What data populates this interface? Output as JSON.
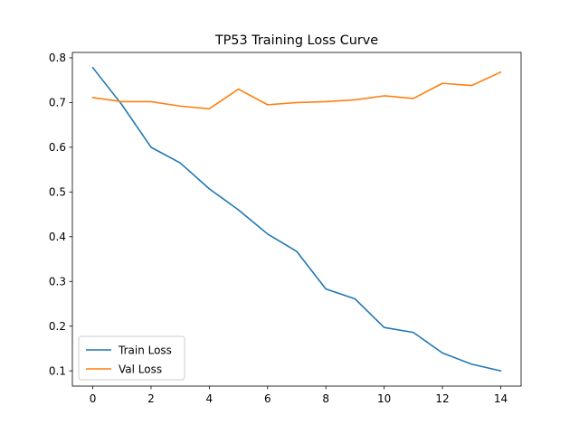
{
  "chart_data": {
    "type": "line",
    "title": "TP53 Training Loss Curve",
    "xlabel": "",
    "ylabel": "",
    "x": [
      0,
      1,
      2,
      3,
      4,
      5,
      6,
      7,
      8,
      9,
      10,
      11,
      12,
      13,
      14
    ],
    "series": [
      {
        "name": "Train Loss",
        "color": "#1f77b4",
        "values": [
          0.778,
          0.695,
          0.6,
          0.565,
          0.507,
          0.46,
          0.406,
          0.367,
          0.283,
          0.261,
          0.197,
          0.186,
          0.14,
          0.115,
          0.1
        ]
      },
      {
        "name": "Val Loss",
        "color": "#ff7f0e",
        "values": [
          0.711,
          0.702,
          0.702,
          0.692,
          0.686,
          0.73,
          0.695,
          0.7,
          0.702,
          0.706,
          0.715,
          0.709,
          0.743,
          0.738,
          0.768
        ]
      }
    ],
    "xticks": [
      0,
      2,
      4,
      6,
      8,
      10,
      12,
      14
    ],
    "yticks": [
      0.1,
      0.2,
      0.3,
      0.4,
      0.5,
      0.6,
      0.7,
      0.8
    ],
    "xtick_labels": [
      "0",
      "2",
      "4",
      "6",
      "8",
      "10",
      "12",
      "14"
    ],
    "ytick_labels": [
      "0.1",
      "0.2",
      "0.3",
      "0.4",
      "0.5",
      "0.6",
      "0.7",
      "0.8"
    ],
    "xlim": [
      -0.7,
      14.7
    ],
    "ylim": [
      0.066,
      0.812
    ],
    "grid": false,
    "legend_position": "lower-left"
  }
}
